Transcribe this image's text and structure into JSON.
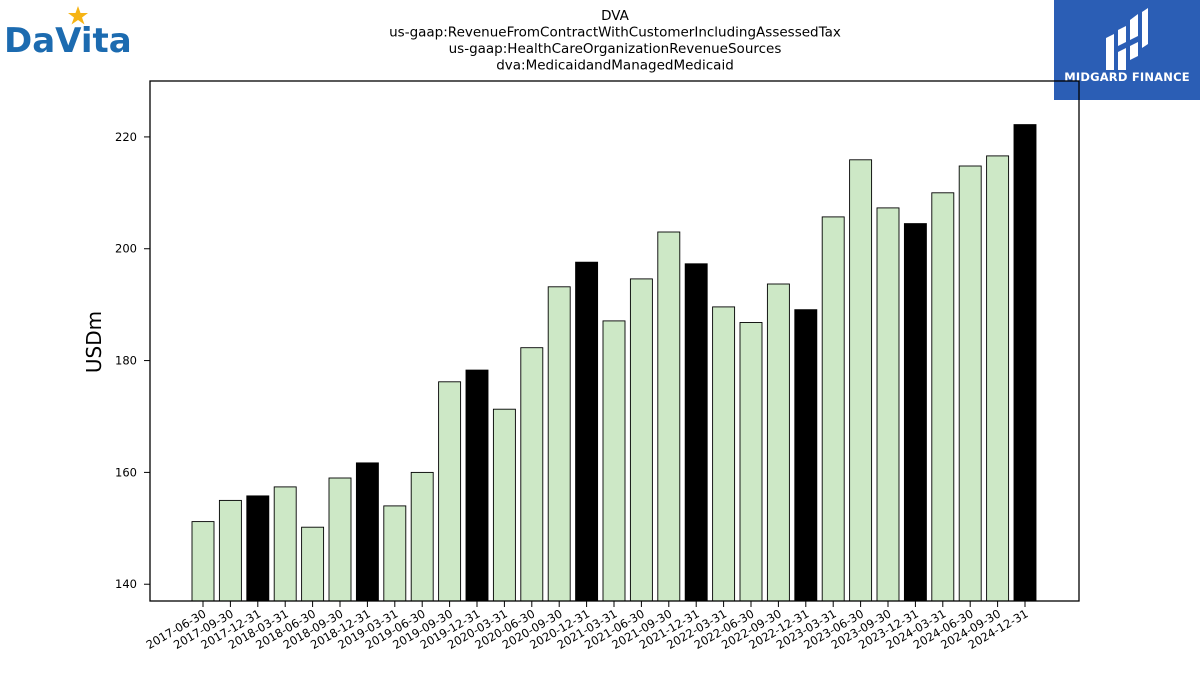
{
  "logos": {
    "left_text": "DaVita",
    "right_text": "MIDGARD FINANCE"
  },
  "colors": {
    "bar_fill": "#cde8c6",
    "bar_highlight": "#000000",
    "bar_stroke": "#000000",
    "right_logo_bg": "#2b5eb5",
    "left_logo_blue": "#1c6bb0",
    "left_logo_star": "#f6b414"
  },
  "chart_data": {
    "type": "bar",
    "title": [
      "DVA",
      "us-gaap:RevenueFromContractWithCustomerIncludingAssessedTax",
      "us-gaap:HealthCareOrganizationRevenueSources",
      "dva:MedicaidandManagedMedicaid"
    ],
    "xlabel": "",
    "ylabel": "USDm",
    "ylim": [
      137,
      230
    ],
    "yticks": [
      140,
      160,
      180,
      200,
      220
    ],
    "grid": false,
    "categories": [
      "2017-06-30",
      "2017-09-30",
      "2017-12-31",
      "2018-03-31",
      "2018-06-30",
      "2018-09-30",
      "2018-12-31",
      "2019-03-31",
      "2019-06-30",
      "2019-09-30",
      "2019-12-31",
      "2020-03-31",
      "2020-06-30",
      "2020-09-30",
      "2020-12-31",
      "2021-03-31",
      "2021-06-30",
      "2021-09-30",
      "2021-12-31",
      "2022-03-31",
      "2022-06-30",
      "2022-09-30",
      "2022-12-31",
      "2023-03-31",
      "2023-06-30",
      "2023-09-30",
      "2023-12-31",
      "2024-03-31",
      "2024-06-30",
      "2024-09-30",
      "2024-12-31"
    ],
    "values": [
      151.2,
      155,
      155.8,
      157.4,
      150.2,
      159,
      161.7,
      154,
      160,
      176.2,
      178.3,
      171.3,
      182.3,
      193.2,
      197.6,
      187.1,
      194.6,
      203,
      197.3,
      189.6,
      186.8,
      193.7,
      189.1,
      205.7,
      215.9,
      207.3,
      204.5,
      210,
      214.8,
      216.6,
      222.2
    ],
    "highlight": [
      false,
      false,
      true,
      false,
      false,
      false,
      true,
      false,
      false,
      false,
      true,
      false,
      false,
      false,
      true,
      false,
      false,
      false,
      true,
      false,
      false,
      false,
      true,
      false,
      false,
      false,
      true,
      false,
      false,
      false,
      true
    ]
  }
}
